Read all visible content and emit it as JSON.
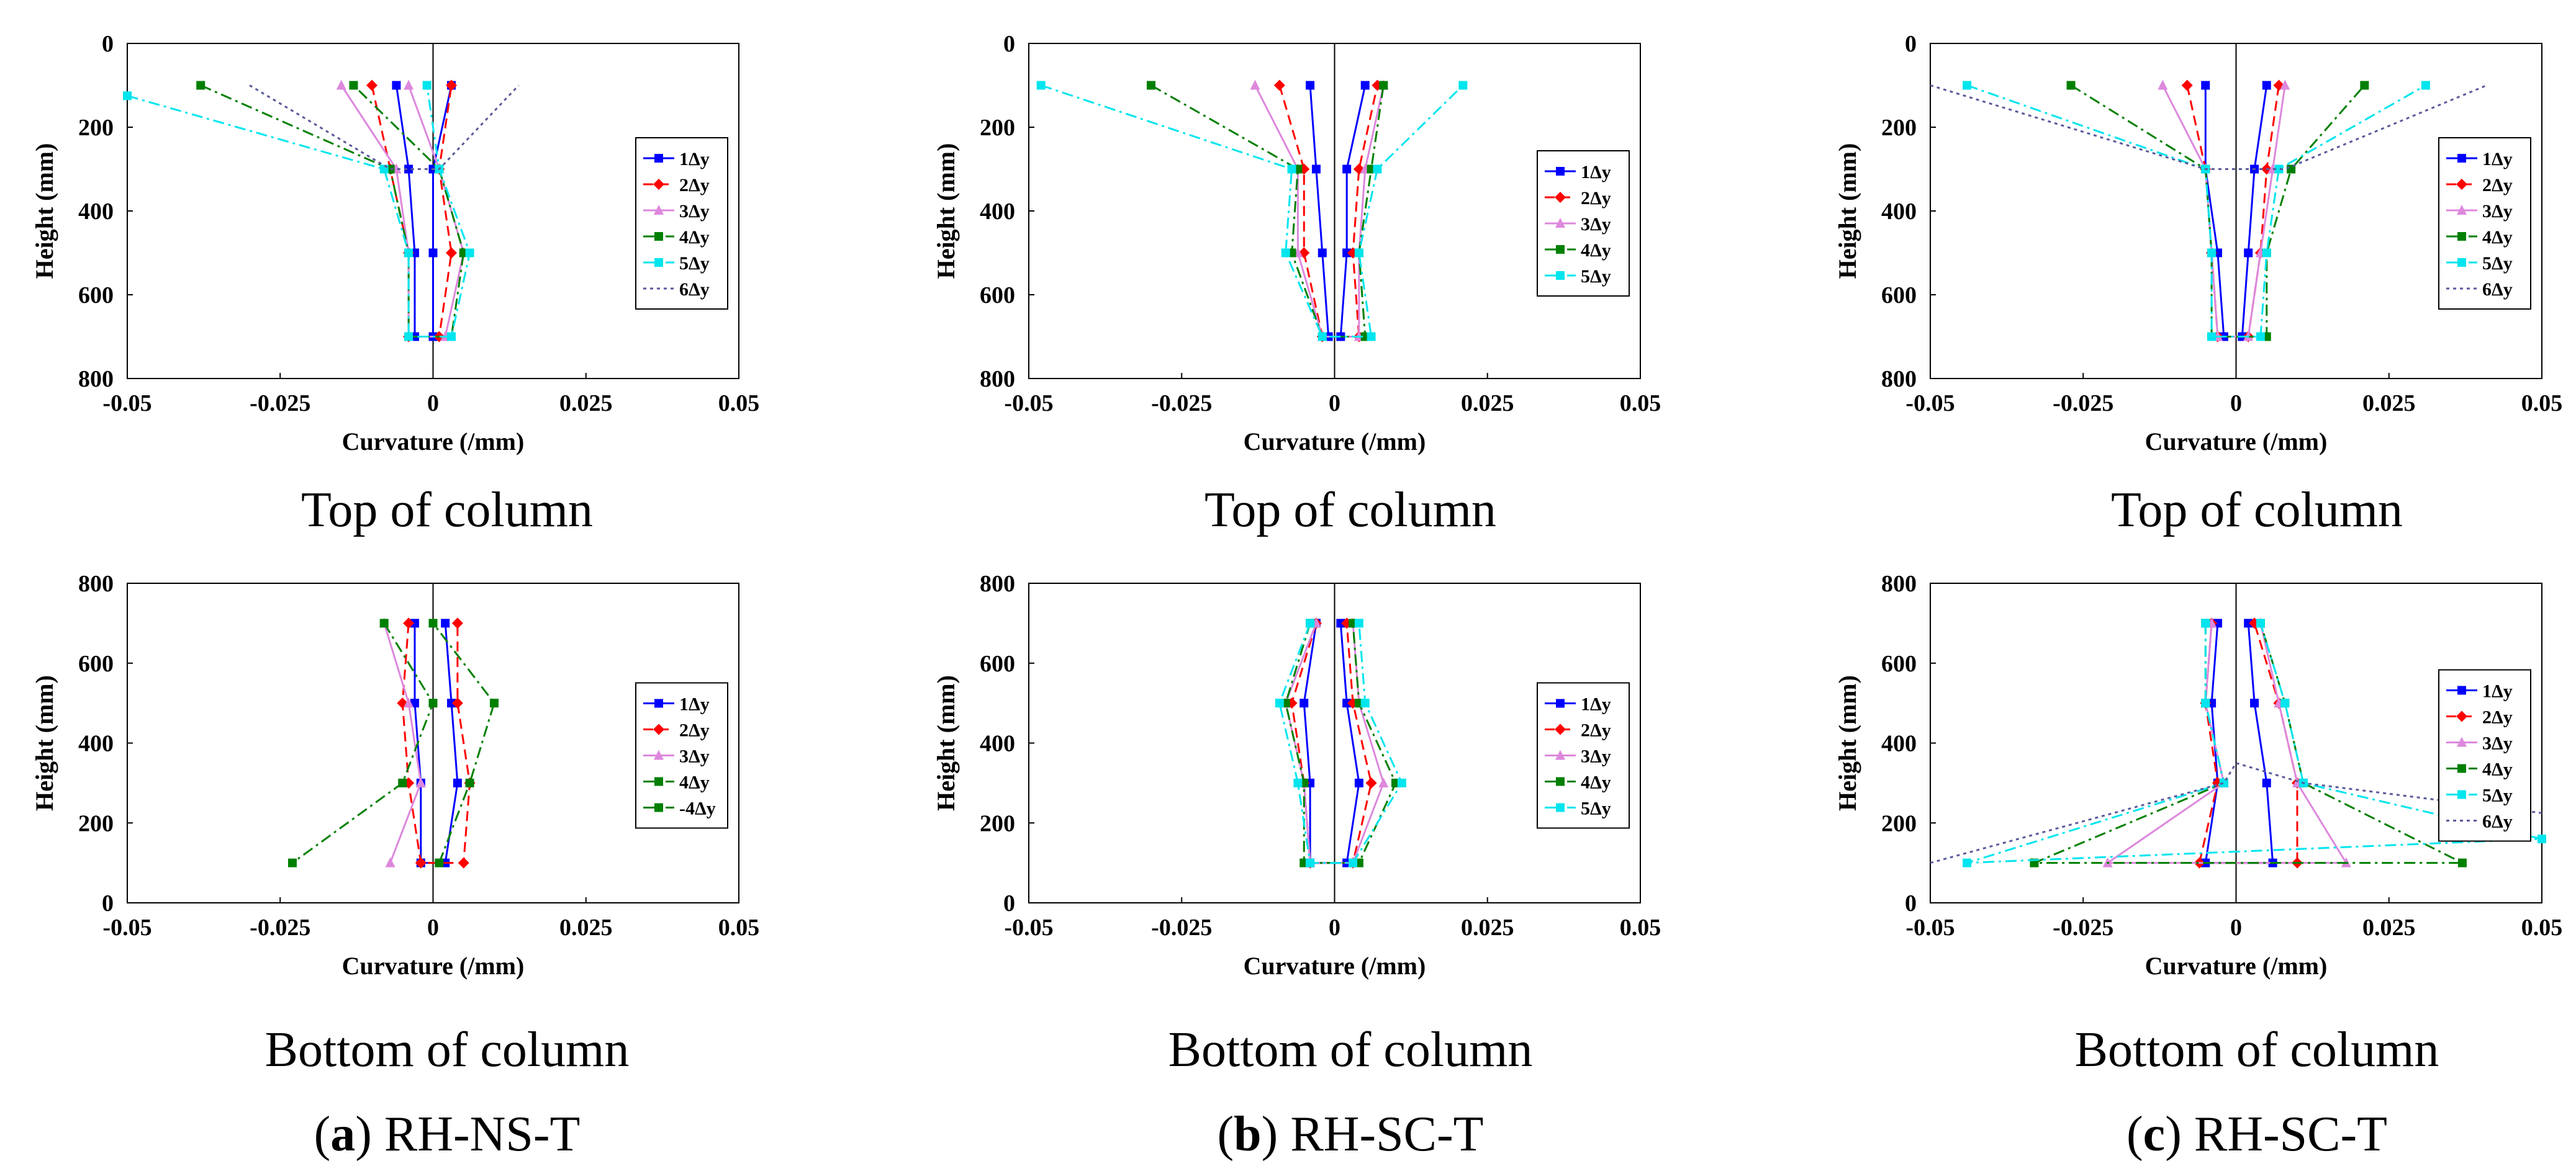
{
  "figure": {
    "panels": [
      {
        "top_caption": "Top of column",
        "bottom_caption": "Bottom of column",
        "letter": "a",
        "label": "RH-NS-T"
      },
      {
        "top_caption": "Top of column",
        "bottom_caption": "Bottom of column",
        "letter": "b",
        "label": "RH-SC-T"
      },
      {
        "top_caption": "Top of column",
        "bottom_caption": "Bottom of column",
        "letter": "c",
        "label": "RH-SC-T"
      }
    ]
  },
  "chart_data": [
    {
      "id": "a-top",
      "type": "line",
      "orientation": "profile",
      "xlabel": "Curvature (/mm)",
      "ylabel": "Height (mm)",
      "xlim": [
        -0.05,
        0.05
      ],
      "ylim": [
        0,
        800
      ],
      "y_inverted": true,
      "xticks": [
        "-0.05",
        "-0.025",
        "0",
        "0.025",
        "0.05"
      ],
      "yticks": [
        "0",
        "200",
        "400",
        "600",
        "800"
      ],
      "legend_position": "right",
      "series": [
        {
          "name": "1Δy",
          "color": "#0000ff",
          "dash": "solid",
          "marker": "square",
          "x": [
            -0.006,
            -0.004,
            -0.003,
            -0.003,
            0,
            0,
            0,
            0.003
          ],
          "y": [
            100,
            300,
            500,
            700,
            700,
            500,
            300,
            100
          ]
        },
        {
          "name": "2Δy",
          "color": "#ff0000",
          "dash": "dash",
          "marker": "diamond",
          "x": [
            -0.01,
            -0.007,
            -0.004,
            -0.004,
            0.001,
            0.003,
            0.001,
            0.003
          ],
          "y": [
            100,
            300,
            500,
            700,
            700,
            500,
            300,
            100
          ]
        },
        {
          "name": "3Δy",
          "color": "#dd88dd",
          "dash": "solid",
          "marker": "triangle",
          "x": [
            -0.015,
            -0.006,
            -0.004,
            -0.004,
            0.002,
            0.005,
            0.001,
            -0.004
          ],
          "y": [
            100,
            300,
            500,
            700,
            700,
            500,
            300,
            100
          ]
        },
        {
          "name": "4Δy",
          "color": "#008000",
          "dash": "dashdot",
          "marker": "square",
          "x": [
            -0.038,
            -0.007,
            -0.004,
            -0.004,
            0.003,
            0.005,
            0.001,
            -0.013
          ],
          "y": [
            100,
            300,
            500,
            700,
            700,
            500,
            300,
            100
          ]
        },
        {
          "name": "5Δy",
          "color": "#00e5ee",
          "dash": "dashdot",
          "marker": "square",
          "x": [
            -0.05,
            -0.008,
            -0.004,
            -0.004,
            0.003,
            0.006,
            0.001,
            -0.001
          ],
          "y": [
            125,
            300,
            500,
            700,
            700,
            500,
            300,
            100
          ]
        },
        {
          "name": "6Δy",
          "color": "#5a5a9a",
          "dash": "dot",
          "marker": "none",
          "x": [
            -0.03,
            -0.007,
            0.001,
            0.014
          ],
          "y": [
            100,
            300,
            300,
            100
          ]
        }
      ]
    },
    {
      "id": "b-top",
      "type": "line",
      "orientation": "profile",
      "xlabel": "Curvature (/mm)",
      "ylabel": "Height (mm)",
      "xlim": [
        -0.05,
        0.05
      ],
      "ylim": [
        0,
        800
      ],
      "y_inverted": true,
      "xticks": [
        "-0.05",
        "-0.025",
        "0",
        "0.025",
        "0.05"
      ],
      "yticks": [
        "0",
        "200",
        "400",
        "600",
        "800"
      ],
      "legend_position": "right",
      "series": [
        {
          "name": "1Δy",
          "color": "#0000ff",
          "dash": "solid",
          "marker": "square",
          "x": [
            -0.004,
            -0.003,
            -0.002,
            -0.001,
            0.001,
            0.002,
            0.002,
            0.005
          ],
          "y": [
            100,
            300,
            500,
            700,
            700,
            500,
            300,
            100
          ]
        },
        {
          "name": "2Δy",
          "color": "#ff0000",
          "dash": "dash",
          "marker": "diamond",
          "x": [
            -0.009,
            -0.005,
            -0.005,
            -0.002,
            0.004,
            0.003,
            0.004,
            0.007
          ],
          "y": [
            100,
            300,
            500,
            700,
            700,
            500,
            300,
            100
          ]
        },
        {
          "name": "3Δy",
          "color": "#dd88dd",
          "dash": "solid",
          "marker": "triangle",
          "x": [
            -0.013,
            -0.006,
            -0.006,
            -0.002,
            0.004,
            0.004,
            0.005,
            0.008
          ],
          "y": [
            100,
            300,
            500,
            700,
            700,
            500,
            300,
            100
          ]
        },
        {
          "name": "4Δy",
          "color": "#008000",
          "dash": "dashdot",
          "marker": "square",
          "x": [
            -0.03,
            -0.006,
            -0.007,
            -0.002,
            0.005,
            0.004,
            0.006,
            0.008
          ],
          "y": [
            100,
            300,
            500,
            700,
            700,
            500,
            300,
            100
          ]
        },
        {
          "name": "5Δy",
          "color": "#00e5ee",
          "dash": "dashdot",
          "marker": "square",
          "x": [
            -0.048,
            -0.007,
            -0.008,
            -0.002,
            0.006,
            0.004,
            0.007,
            0.021
          ],
          "y": [
            100,
            300,
            500,
            700,
            700,
            500,
            300,
            100
          ]
        }
      ]
    },
    {
      "id": "c-top",
      "type": "line",
      "orientation": "profile",
      "xlabel": "Curvature (/mm)",
      "ylabel": "Height (mm)",
      "xlim": [
        -0.05,
        0.05
      ],
      "ylim": [
        0,
        800
      ],
      "y_inverted": true,
      "xticks": [
        "-0.05",
        "-0.025",
        "0",
        "0.025",
        "0.05"
      ],
      "yticks": [
        "0",
        "200",
        "400",
        "600",
        "800"
      ],
      "legend_position": "right",
      "series": [
        {
          "name": "1Δy",
          "color": "#0000ff",
          "dash": "solid",
          "marker": "square",
          "x": [
            -0.005,
            -0.005,
            -0.003,
            -0.002,
            0.001,
            0.002,
            0.003,
            0.005
          ],
          "y": [
            100,
            300,
            500,
            700,
            700,
            500,
            300,
            100
          ]
        },
        {
          "name": "2Δy",
          "color": "#ff0000",
          "dash": "dash",
          "marker": "diamond",
          "x": [
            -0.008,
            -0.005,
            -0.004,
            -0.003,
            0.002,
            0.004,
            0.005,
            0.007
          ],
          "y": [
            100,
            300,
            500,
            700,
            700,
            500,
            300,
            100
          ]
        },
        {
          "name": "3Δy",
          "color": "#dd88dd",
          "dash": "solid",
          "marker": "triangle",
          "x": [
            -0.012,
            -0.005,
            -0.004,
            -0.003,
            0.002,
            0.004,
            0.006,
            0.008
          ],
          "y": [
            100,
            300,
            500,
            700,
            700,
            500,
            300,
            100
          ]
        },
        {
          "name": "4Δy",
          "color": "#008000",
          "dash": "dashdot",
          "marker": "square",
          "x": [
            -0.027,
            -0.005,
            -0.004,
            -0.004,
            0.005,
            0.005,
            0.009,
            0.021
          ],
          "y": [
            100,
            300,
            500,
            700,
            700,
            500,
            300,
            100
          ]
        },
        {
          "name": "5Δy",
          "color": "#00e5ee",
          "dash": "dashdot",
          "marker": "square",
          "x": [
            -0.044,
            -0.005,
            -0.004,
            -0.004,
            0.004,
            0.005,
            0.007,
            0.031
          ],
          "y": [
            100,
            300,
            500,
            700,
            700,
            500,
            300,
            100
          ]
        },
        {
          "name": "6Δy",
          "color": "#5a5a9a",
          "dash": "dot",
          "marker": "none",
          "x": [
            -0.05,
            -0.005,
            0.008,
            0.041
          ],
          "y": [
            100,
            300,
            300,
            100
          ]
        }
      ]
    },
    {
      "id": "a-bottom",
      "type": "line",
      "orientation": "profile",
      "xlabel": "Curvature (/mm)",
      "ylabel": "Height (mm)",
      "xlim": [
        -0.05,
        0.05
      ],
      "ylim": [
        0,
        800
      ],
      "y_inverted": false,
      "xticks": [
        "-0.05",
        "-0.025",
        "0",
        "0.025",
        "0.05"
      ],
      "yticks": [
        "0",
        "200",
        "400",
        "600",
        "800"
      ],
      "legend_position": "right",
      "series": [
        {
          "name": "1Δy",
          "color": "#0000ff",
          "dash": "solid",
          "marker": "square",
          "x": [
            -0.003,
            -0.003,
            -0.002,
            -0.002,
            0.002,
            0.004,
            0.003,
            0.002
          ],
          "y": [
            700,
            500,
            300,
            100,
            100,
            300,
            500,
            700
          ]
        },
        {
          "name": "2Δy",
          "color": "#ff0000",
          "dash": "dash",
          "marker": "diamond",
          "x": [
            -0.004,
            -0.005,
            -0.004,
            -0.002,
            0.005,
            0.006,
            0.004,
            0.004
          ],
          "y": [
            700,
            500,
            300,
            100,
            100,
            300,
            500,
            700
          ]
        },
        {
          "name": "3Δy",
          "color": "#dd88dd",
          "dash": "solid",
          "marker": "triangle",
          "x": [
            -0.008,
            -0.004,
            -0.002,
            -0.007
          ],
          "y": [
            700,
            500,
            300,
            100
          ]
        },
        {
          "name": "4Δy",
          "color": "#008000",
          "dash": "dashdot",
          "marker": "square",
          "x": [
            -0.008,
            0,
            -0.005,
            -0.023
          ],
          "y": [
            700,
            500,
            300,
            100
          ]
        },
        {
          "name": "-4Δy",
          "color": "#008000",
          "dash": "dashdot",
          "marker": "square",
          "x": [
            0.001,
            0.006,
            0.01,
            0
          ],
          "y": [
            100,
            300,
            500,
            700
          ]
        }
      ]
    },
    {
      "id": "b-bottom",
      "type": "line",
      "orientation": "profile",
      "xlabel": "Curvature (/mm)",
      "ylabel": "Height (mm)",
      "xlim": [
        -0.05,
        0.05
      ],
      "ylim": [
        0,
        800
      ],
      "y_inverted": false,
      "xticks": [
        "-0.05",
        "-0.025",
        "0",
        "0.025",
        "0.05"
      ],
      "yticks": [
        "0",
        "200",
        "400",
        "600",
        "800"
      ],
      "legend_position": "right",
      "series": [
        {
          "name": "1Δy",
          "color": "#0000ff",
          "dash": "solid",
          "marker": "square",
          "x": [
            -0.003,
            -0.005,
            -0.004,
            -0.004,
            0.002,
            0.004,
            0.002,
            0.001
          ],
          "y": [
            700,
            500,
            300,
            100,
            100,
            300,
            500,
            700
          ]
        },
        {
          "name": "2Δy",
          "color": "#ff0000",
          "dash": "dash",
          "marker": "diamond",
          "x": [
            -0.003,
            -0.007,
            -0.005,
            -0.004,
            0.003,
            0.006,
            0.003,
            0.002
          ],
          "y": [
            700,
            500,
            300,
            100,
            100,
            300,
            500,
            700
          ]
        },
        {
          "name": "3Δy",
          "color": "#dd88dd",
          "dash": "solid",
          "marker": "triangle",
          "x": [
            -0.003,
            -0.008,
            -0.005,
            -0.004,
            0.003,
            0.008,
            0.004,
            0.003
          ],
          "y": [
            700,
            500,
            300,
            100,
            100,
            300,
            500,
            700
          ]
        },
        {
          "name": "4Δy",
          "color": "#008000",
          "dash": "dashdot",
          "marker": "square",
          "x": [
            -0.004,
            -0.008,
            -0.005,
            -0.005,
            0.004,
            0.01,
            0.004,
            0.003
          ],
          "y": [
            700,
            500,
            300,
            100,
            100,
            300,
            500,
            700
          ]
        },
        {
          "name": "5Δy",
          "color": "#00e5ee",
          "dash": "dashdot",
          "marker": "square",
          "x": [
            -0.004,
            -0.009,
            -0.006,
            -0.004,
            0.003,
            0.011,
            0.005,
            0.004
          ],
          "y": [
            700,
            500,
            300,
            100,
            100,
            300,
            500,
            700
          ]
        }
      ]
    },
    {
      "id": "c-bottom",
      "type": "line",
      "orientation": "profile",
      "xlabel": "Curvature (/mm)",
      "ylabel": "Height (mm)",
      "xlim": [
        -0.05,
        0.05
      ],
      "ylim": [
        0,
        800
      ],
      "y_inverted": false,
      "xticks": [
        "-0.05",
        "-0.025",
        "0",
        "0.025",
        "0.05"
      ],
      "yticks": [
        "0",
        "200",
        "400",
        "600",
        "800"
      ],
      "legend_position": "right",
      "series": [
        {
          "name": "1Δy",
          "color": "#0000ff",
          "dash": "solid",
          "marker": "square",
          "x": [
            -0.003,
            -0.004,
            -0.003,
            -0.005,
            0.006,
            0.005,
            0.003,
            0.002
          ],
          "y": [
            700,
            500,
            300,
            100,
            100,
            300,
            500,
            700
          ]
        },
        {
          "name": "2Δy",
          "color": "#ff0000",
          "dash": "dash",
          "marker": "diamond",
          "x": [
            -0.004,
            -0.005,
            -0.003,
            -0.006,
            0.01,
            0.01,
            0.007,
            0.003
          ],
          "y": [
            700,
            500,
            300,
            100,
            100,
            300,
            500,
            700
          ]
        },
        {
          "name": "3Δy",
          "color": "#dd88dd",
          "dash": "solid",
          "marker": "triangle",
          "x": [
            -0.004,
            -0.005,
            -0.002,
            -0.021,
            0.018,
            0.01,
            0.007,
            0.004
          ],
          "y": [
            700,
            500,
            300,
            100,
            100,
            300,
            500,
            700
          ]
        },
        {
          "name": "4Δy",
          "color": "#008000",
          "dash": "dashdot",
          "marker": "square",
          "x": [
            -0.005,
            -0.005,
            -0.002,
            -0.033,
            0.037,
            0.011,
            0.008,
            0.004
          ],
          "y": [
            700,
            500,
            300,
            100,
            100,
            300,
            500,
            700
          ]
        },
        {
          "name": "5Δy",
          "color": "#00e5ee",
          "dash": "dashdot",
          "marker": "square",
          "x": [
            -0.005,
            -0.005,
            -0.002,
            -0.044,
            0.05,
            0.011,
            0.008,
            0.004
          ],
          "y": [
            700,
            500,
            300,
            100,
            160,
            300,
            500,
            700
          ]
        },
        {
          "name": "6Δy",
          "color": "#5a5a9a",
          "dash": "dot",
          "marker": "none",
          "x": [
            -0.05,
            -0.002,
            0,
            0.011,
            0.05
          ],
          "y": [
            100,
            300,
            350,
            300,
            225
          ]
        }
      ]
    }
  ]
}
